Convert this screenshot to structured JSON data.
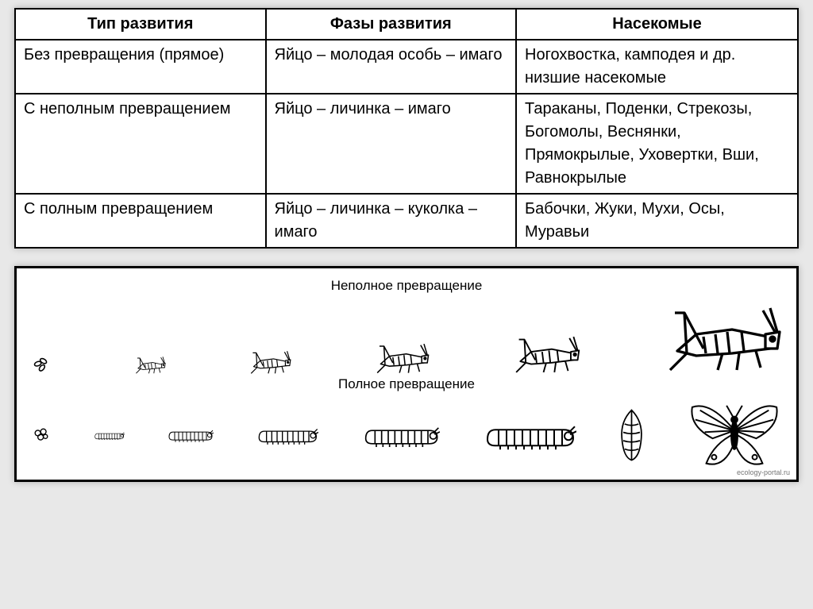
{
  "table": {
    "headers": [
      "Тип развития",
      "Фазы развития",
      "Насекомые"
    ],
    "rows": [
      {
        "type": "Без превращения (прямое)",
        "phases": "Яйцо – молодая особь – имаго",
        "insects": "Ногохвостка, камподея и др. низшие насекомые"
      },
      {
        "type": "С неполным превращением",
        "phases": "Яйцо – личинка – имаго",
        "insects": "Тараканы, Поденки, Стрекозы, Богомолы, Веснянки, Прямокрылые, Уховертки, Вши, Равнокрылые"
      },
      {
        "type": "С полным превращением",
        "phases": "Яйцо – личинка – куколка – имаго",
        "insects": "Бабочки, Жуки, Мухи, Осы, Муравьи"
      }
    ]
  },
  "diagram": {
    "title_incomplete": "Неполное превращение",
    "title_complete": "Полное превращение",
    "incomplete_sizes": [
      26,
      40,
      54,
      70,
      86,
      150
    ],
    "caterpillar_sizes": [
      40,
      60,
      80,
      100,
      120
    ],
    "egg_size": 26,
    "pupa_size": 70,
    "butterfly_size": 120,
    "stroke": "#000000",
    "fill": "#ffffff"
  },
  "credit": "ecology-portal.ru"
}
